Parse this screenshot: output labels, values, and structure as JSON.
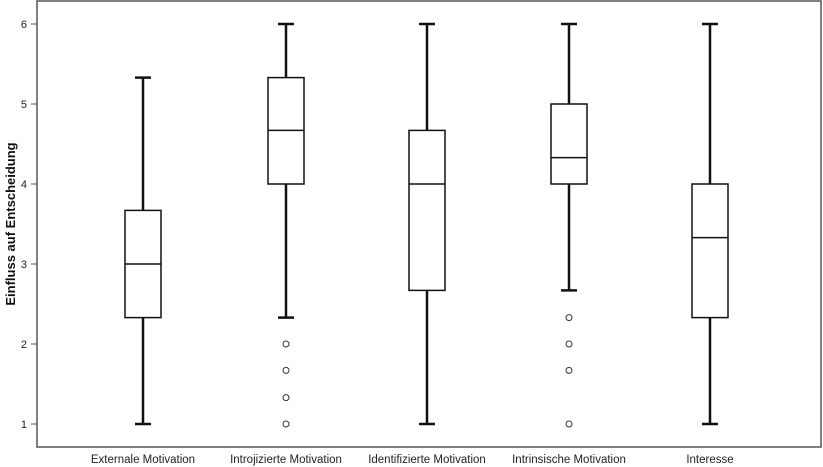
{
  "chart_data": {
    "type": "boxplot",
    "ylabel": "Einfluss auf Entscheidung",
    "xlabel": "",
    "ylim": [
      1,
      6
    ],
    "yticks": [
      "1",
      "2",
      "3",
      "4",
      "5",
      "6"
    ],
    "grid": false,
    "categories": [
      "Externale Motivation",
      "Introjizierte Motivation",
      "Identifizierte Motivation",
      "Intrinsische Motivation",
      "Interesse"
    ],
    "series": [
      {
        "category": "Externale Motivation",
        "whisker_low": 1,
        "q1": 2.33,
        "median": 3.0,
        "q3": 3.67,
        "whisker_high": 5.33,
        "outliers": []
      },
      {
        "category": "Introjizierte Motivation",
        "whisker_low": 2.33,
        "q1": 4.0,
        "median": 4.67,
        "q3": 5.33,
        "whisker_high": 6,
        "outliers": [
          2.0,
          1.67,
          1.33,
          1.0
        ]
      },
      {
        "category": "Identifizierte Motivation",
        "whisker_low": 1,
        "q1": 2.67,
        "median": 4.0,
        "q3": 4.67,
        "whisker_high": 6,
        "outliers": []
      },
      {
        "category": "Intrinsische Motivation",
        "whisker_low": 2.67,
        "q1": 4.0,
        "median": 4.33,
        "q3": 5.0,
        "whisker_high": 6,
        "outliers": [
          2.33,
          2.0,
          1.67,
          1.0
        ]
      },
      {
        "category": "Interesse",
        "whisker_low": 1,
        "q1": 2.33,
        "median": 3.33,
        "q3": 4.0,
        "whisker_high": 6,
        "outliers": []
      }
    ]
  }
}
